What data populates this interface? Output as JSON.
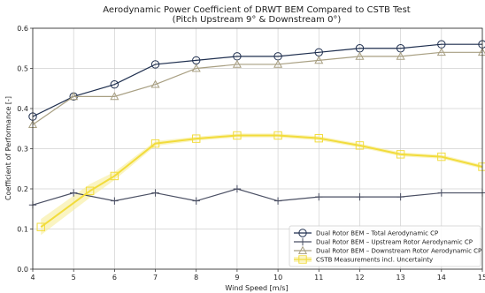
{
  "chart_data": {
    "type": "line",
    "title": "Aerodynamic Power Coefficient of DRWT BEM Compared to CSTB Test",
    "subtitle": "(Pitch Upstream 9° & Downstream 0°)",
    "xlabel": "Wind Speed [m/s]",
    "ylabel": "Coefficient of Performance [-]",
    "xlim": [
      4,
      15
    ],
    "ylim": [
      0,
      0.6
    ],
    "xticks": [
      4,
      5,
      6,
      7,
      8,
      9,
      10,
      11,
      12,
      13,
      14,
      15
    ],
    "yticks": [
      0.0,
      0.1,
      0.2,
      0.3,
      0.4,
      0.5,
      0.6
    ],
    "grid": true,
    "legend_position": "lower-right",
    "series": [
      {
        "name": "Dual Rotor BEM – Total Aerodynamic CP",
        "color": "#1f2f4f",
        "marker": "circle",
        "x": [
          4,
          5,
          6,
          7,
          8,
          9,
          10,
          11,
          12,
          13,
          14,
          15
        ],
        "y": [
          0.38,
          0.43,
          0.46,
          0.51,
          0.52,
          0.53,
          0.53,
          0.54,
          0.55,
          0.55,
          0.56,
          0.56
        ]
      },
      {
        "name": "Dual Rotor BEM – Upstream Rotor Aerodynamic CP",
        "color": "#4a4f63",
        "marker": "plus",
        "x": [
          4,
          5,
          6,
          7,
          8,
          9,
          10,
          11,
          12,
          13,
          14,
          15
        ],
        "y": [
          0.16,
          0.19,
          0.17,
          0.19,
          0.17,
          0.2,
          0.17,
          0.18,
          0.18,
          0.18,
          0.19,
          0.19
        ]
      },
      {
        "name": "Dual Rotor BEM – Downstream Rotor Aerodynamic CP",
        "color": "#a89f82",
        "marker": "triangle",
        "x": [
          4,
          5,
          6,
          7,
          8,
          9,
          10,
          11,
          12,
          13,
          14,
          15
        ],
        "y": [
          0.36,
          0.43,
          0.43,
          0.46,
          0.5,
          0.51,
          0.51,
          0.52,
          0.53,
          0.53,
          0.54,
          0.54
        ]
      },
      {
        "name": "CSTB Measurements incl. Uncertainty",
        "color": "#f2dc3c",
        "band_color": "#f7ec9a",
        "marker": "square",
        "x": [
          4.2,
          5.4,
          6.0,
          7.0,
          8.0,
          9.0,
          10.0,
          11.0,
          12.0,
          13.0,
          14.0,
          15.0
        ],
        "y": [
          0.105,
          0.195,
          0.232,
          0.313,
          0.325,
          0.333,
          0.333,
          0.326,
          0.308,
          0.286,
          0.28,
          0.255
        ],
        "y_low": [
          0.085,
          0.178,
          0.222,
          0.307,
          0.32,
          0.328,
          0.328,
          0.321,
          0.303,
          0.281,
          0.275,
          0.25
        ],
        "y_high": [
          0.125,
          0.212,
          0.242,
          0.319,
          0.33,
          0.338,
          0.338,
          0.331,
          0.313,
          0.291,
          0.285,
          0.26
        ]
      }
    ]
  }
}
